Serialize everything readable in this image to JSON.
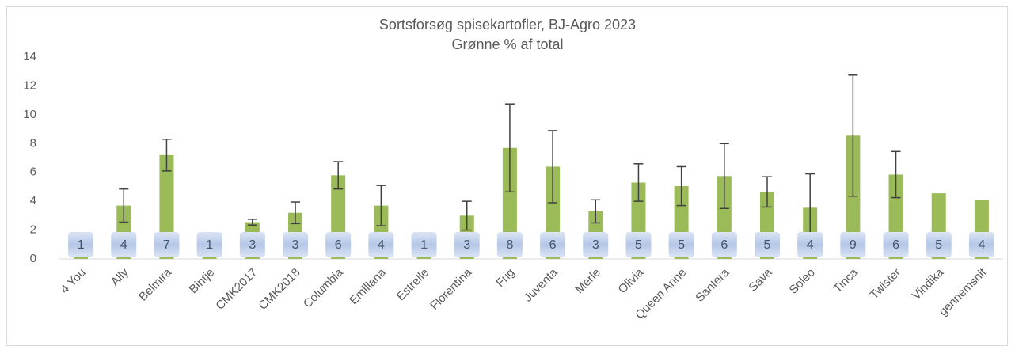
{
  "chart_data": {
    "type": "bar",
    "title": "Sortsforsøg spisekartofler, BJ-Agro 2023",
    "subtitle": "Grønne % af total",
    "categories": [
      "4 You",
      "Ally",
      "Belmira",
      "Bintje",
      "CMK2017",
      "CMK2018",
      "Columbia",
      "Emiliana",
      "Estrelle",
      "Florentina",
      "Frig",
      "Juventa",
      "Merle",
      "Olivia",
      "Queen Anne",
      "Santera",
      "Sava",
      "Soleo",
      "Tinca",
      "Twister",
      "Vindika",
      "gennemsnit"
    ],
    "values": [
      1.0,
      3.7,
      7.2,
      1.0,
      2.55,
      3.2,
      5.8,
      3.7,
      1.0,
      3.0,
      7.7,
      6.4,
      3.3,
      5.3,
      5.05,
      5.75,
      4.65,
      3.55,
      8.55,
      5.85,
      4.55,
      4.1
    ],
    "value_labels": [
      "1",
      "4",
      "7",
      "1",
      "3",
      "3",
      "6",
      "4",
      "1",
      "3",
      "8",
      "6",
      "3",
      "5",
      "5",
      "6",
      "5",
      "4",
      "9",
      "6",
      "5",
      "4"
    ],
    "errors": [
      null,
      1.15,
      1.1,
      null,
      0.2,
      0.75,
      0.95,
      1.4,
      null,
      1.0,
      3.05,
      2.5,
      0.8,
      1.3,
      1.35,
      2.25,
      1.05,
      2.35,
      4.2,
      1.6,
      null,
      null
    ],
    "color": "#9bbb59",
    "ylim": [
      0,
      14
    ],
    "yticks": [
      0,
      2,
      4,
      6,
      8,
      10,
      12,
      14
    ],
    "grid": false
  }
}
